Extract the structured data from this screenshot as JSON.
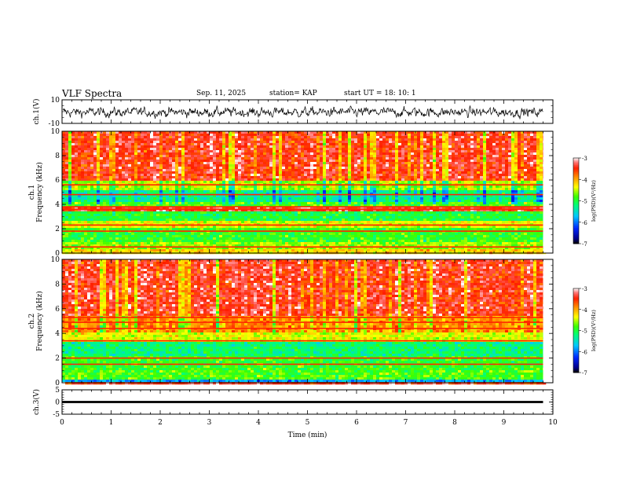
{
  "header": {
    "title": "VLF Spectra",
    "date": "Sep. 11, 2025",
    "station": "station= KAP",
    "start": "start  UT =   18: 10: 1"
  },
  "chart_data": [
    {
      "type": "line",
      "name": "ch1-waveform",
      "ylabel": "ch.1(V)",
      "ylim": [
        -10,
        10
      ],
      "y_ticks": [
        "10",
        "-10"
      ],
      "xlim": [
        0,
        10
      ],
      "data_end_min": 9.8,
      "description_values": {
        "mean": 0,
        "typical_range": [
          -6,
          4
        ]
      }
    },
    {
      "type": "heatmap",
      "name": "ch1-spectrogram",
      "ylabel": "ch.1\nFrequency  (kHz)",
      "ylabel_lines": [
        "ch.1",
        "Frequency  (kHz)"
      ],
      "ylim": [
        0,
        10
      ],
      "y_ticks": [
        "0",
        "2",
        "4",
        "6",
        "8",
        "10"
      ],
      "xlim": [
        0,
        10
      ],
      "data_end_min": 9.8,
      "bands_khz": [
        {
          "from": 0,
          "to": 0.3,
          "level": -4.2
        },
        {
          "from": 0.3,
          "to": 1.0,
          "level": -4.6
        },
        {
          "from": 1.0,
          "to": 2.0,
          "level": -4.9
        },
        {
          "from": 2.0,
          "to": 2.6,
          "level": -4.4
        },
        {
          "from": 2.6,
          "to": 3.4,
          "level": -5.0
        },
        {
          "from": 3.4,
          "to": 3.9,
          "level": -3.4
        },
        {
          "from": 3.9,
          "to": 4.2,
          "level": -4.8
        },
        {
          "from": 4.2,
          "to": 5.2,
          "level": -5.2
        },
        {
          "from": 5.2,
          "to": 6.0,
          "level": -4.5
        },
        {
          "from": 6.0,
          "to": 10.0,
          "level": -3.4
        }
      ],
      "lines_khz": [
        0.5,
        1.8,
        2.3,
        3.6,
        3.8,
        4.8,
        5.6
      ]
    },
    {
      "type": "heatmap",
      "name": "ch2-spectrogram",
      "ylabel": "ch.2\nFrequency  (kHz)",
      "ylabel_lines": [
        "ch.2",
        "Frequency  (kHz)"
      ],
      "ylim": [
        0,
        10
      ],
      "y_ticks": [
        "0",
        "2",
        "4",
        "6",
        "8",
        "10"
      ],
      "xlim": [
        0,
        10
      ],
      "data_end_min": 9.8,
      "bands_khz": [
        {
          "from": 0,
          "to": 0.3,
          "level": -5.8
        },
        {
          "from": 0.3,
          "to": 1.0,
          "level": -4.8
        },
        {
          "from": 1.0,
          "to": 2.2,
          "level": -4.9
        },
        {
          "from": 2.2,
          "to": 3.4,
          "level": -5.2
        },
        {
          "from": 3.4,
          "to": 4.0,
          "level": -4.4
        },
        {
          "from": 4.0,
          "to": 5.4,
          "level": -3.9
        },
        {
          "from": 5.4,
          "to": 10.0,
          "level": -3.4
        }
      ],
      "lines_khz": [
        1.5,
        2.0,
        3.4,
        4.4,
        4.9,
        5.3
      ]
    },
    {
      "type": "line",
      "name": "ch3-signal",
      "ylabel": "ch.3(V)",
      "ylim": [
        -5,
        5
      ],
      "y_ticks": [
        "5",
        "0",
        "-5"
      ],
      "xlim": [
        0,
        10
      ],
      "data_end_min": 9.8,
      "level_v": 0,
      "band_v": [
        -0.45,
        0.45
      ]
    }
  ],
  "colorbar": {
    "label": "log(PSD)(V²/Hz)",
    "range": [
      -7,
      -3
    ],
    "ticks": [
      "-3",
      "-4",
      "-5",
      "-6",
      "-7"
    ]
  },
  "x_axis": {
    "label": "Time  (min)",
    "ticks": [
      "0",
      "1",
      "2",
      "3",
      "4",
      "5",
      "6",
      "7",
      "8",
      "9",
      "10"
    ]
  }
}
